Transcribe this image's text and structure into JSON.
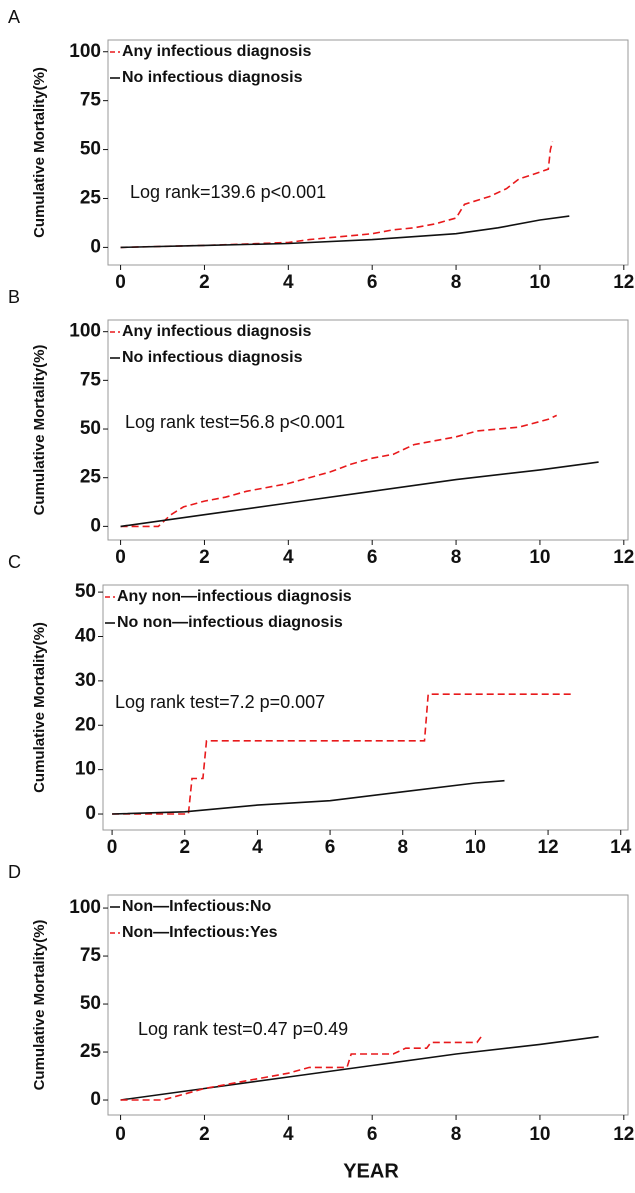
{
  "xlabel": "YEAR",
  "chart_data": [
    {
      "type": "line",
      "panel_label": "A",
      "ylabel": "Cumulative Mortality(%)",
      "annotation": "Log rank=139.6 p<0.001",
      "xlim": [
        -0.3,
        12.1
      ],
      "xticks": [
        0,
        2,
        4,
        6,
        8,
        10,
        12
      ],
      "ylim": [
        -9,
        106
      ],
      "yticks": [
        0,
        25,
        50,
        75,
        100
      ],
      "series": [
        {
          "name": "Any infectious diagnosis",
          "color": "#e8191b",
          "dashed": true,
          "x": [
            0,
            2,
            4,
            4.5,
            5,
            5.5,
            6,
            6.5,
            7,
            7.5,
            8,
            8.2,
            8.8,
            9.2,
            9.5,
            9.8,
            10.2,
            10.25,
            10.3
          ],
          "values": [
            0,
            1,
            2.5,
            4,
            5,
            6,
            7,
            9,
            10,
            12,
            15,
            22,
            26,
            30,
            35,
            37,
            40,
            50,
            54
          ]
        },
        {
          "name": "No infectious diagnosis",
          "color": "#111111",
          "dashed": false,
          "x": [
            0,
            2,
            4,
            6,
            8,
            9,
            10,
            10.7
          ],
          "values": [
            0,
            1,
            2,
            4,
            7,
            10,
            14,
            16
          ]
        }
      ]
    },
    {
      "type": "line",
      "panel_label": "B",
      "ylabel": "Cumulative Mortality(%)",
      "annotation": "Log rank test=56.8 p<0.001",
      "xlim": [
        -0.3,
        12.1
      ],
      "xticks": [
        0,
        2,
        4,
        6,
        8,
        10,
        12
      ],
      "ylim": [
        -7,
        106
      ],
      "yticks": [
        0,
        25,
        50,
        75,
        100
      ],
      "series": [
        {
          "name": "Any infectious diagnosis",
          "color": "#e8191b",
          "dashed": true,
          "x": [
            0,
            0.9,
            1.2,
            1.5,
            2,
            2.5,
            3,
            4,
            5,
            5.5,
            6,
            6.5,
            7,
            8,
            8.5,
            9.5,
            10.2,
            10.4
          ],
          "values": [
            0,
            0,
            6,
            10,
            13,
            15,
            18,
            22,
            28,
            32,
            35,
            37,
            42,
            46,
            49,
            51,
            55,
            57
          ]
        },
        {
          "name": "No infectious diagnosis",
          "color": "#111111",
          "dashed": false,
          "x": [
            0,
            2,
            4,
            6,
            8,
            10,
            11.4
          ],
          "values": [
            0,
            6,
            12,
            18,
            24,
            29,
            33
          ]
        }
      ]
    },
    {
      "type": "line",
      "panel_label": "C",
      "ylabel": "Cumulative Mortality(%)",
      "annotation": "Log rank test=7.2 p=0.007",
      "xlim": [
        -0.25,
        14.2
      ],
      "xticks": [
        0,
        2,
        4,
        6,
        8,
        10,
        12,
        14
      ],
      "ylim": [
        -3.6,
        51.6
      ],
      "yticks": [
        0,
        10,
        20,
        30,
        40,
        50
      ],
      "series": [
        {
          "name": "Any non—infectious diagnosis",
          "color": "#e8191b",
          "dashed": true,
          "x": [
            0,
            2.1,
            2.2,
            2.5,
            2.6,
            8.6,
            8.7,
            12.7
          ],
          "values": [
            0,
            0,
            8,
            8,
            16.5,
            16.5,
            27,
            27
          ]
        },
        {
          "name": "No non—infectious diagnosis",
          "color": "#111111",
          "dashed": false,
          "x": [
            0,
            2,
            4,
            6,
            8,
            10,
            10.8
          ],
          "values": [
            0,
            0.5,
            2,
            3,
            5,
            7,
            7.5
          ]
        }
      ]
    },
    {
      "type": "line",
      "panel_label": "D",
      "ylabel": "Cumulative Mortality(%)",
      "annotation": "Log rank test=0.47 p=0.49",
      "xlim": [
        -0.3,
        12.1
      ],
      "xticks": [
        0,
        2,
        4,
        6,
        8,
        10,
        12
      ],
      "ylim": [
        -7.8,
        106.8
      ],
      "yticks": [
        0,
        25,
        50,
        75,
        100
      ],
      "series": [
        {
          "name": "Non—Infectious:No",
          "color": "#111111",
          "dashed": false,
          "x": [
            0,
            2,
            4,
            6,
            8,
            10,
            11.4
          ],
          "values": [
            0,
            6,
            12,
            18,
            24,
            29,
            33
          ]
        },
        {
          "name": "Non—Infectious:Yes",
          "color": "#e8191b",
          "dashed": true,
          "x": [
            0,
            1,
            1.5,
            2,
            3,
            4,
            4.5,
            5.4,
            5.5,
            6.5,
            6.8,
            7.3,
            7.4,
            8.5,
            8.6
          ],
          "values": [
            0,
            0,
            3,
            6,
            10,
            14,
            17,
            17,
            24,
            24,
            27,
            27,
            30,
            30,
            33
          ]
        }
      ]
    }
  ]
}
